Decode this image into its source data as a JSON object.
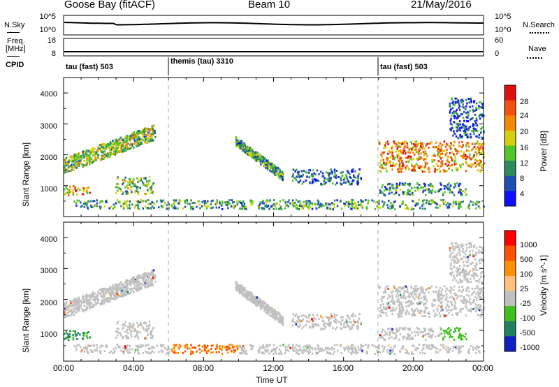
{
  "header": {
    "radar": "Goose Bay (fitACF)",
    "beam": "Beam 10",
    "date": "21/May/2016"
  },
  "summary_labels": {
    "nsky": "N.Sky",
    "nsearch": "N.Search",
    "freq_line1": "Freq.",
    "freq_line2": "[MHz]",
    "nave": "Nave",
    "cpid": "CPID"
  },
  "summary_ticks": {
    "noise_top": "10^5",
    "noise_bottom": "10^0",
    "freq_top": "18",
    "freq_bottom": "8",
    "nave_top": "60",
    "nave_bottom": "0"
  },
  "cpid_segments": [
    {
      "label": "tau (fast) 503",
      "start_hour": 0
    },
    {
      "label": "themis (tau) 3310",
      "start_hour": 6
    },
    {
      "label": "tau (fast) 503",
      "start_hour": 18
    }
  ],
  "colors": {
    "power_scale": [
      "#1010ff",
      "#1f4fb0",
      "#2e8a5a",
      "#53c42c",
      "#d6d00a",
      "#f08a00",
      "#f05010",
      "#e01010"
    ],
    "velocity_scale": [
      "#ff0000",
      "#ff5000",
      "#ff9000",
      "#ffc080",
      "#c0c0c0",
      "#40c020",
      "#208060",
      "#1020c0"
    ],
    "ground_scatter": "#c0c0c0"
  },
  "chart_data": [
    {
      "type": "heatmap",
      "title": "Power",
      "xlabel": "",
      "ylabel": "Slant Range [km]",
      "xlim": [
        "00:00",
        "00:00"
      ],
      "ylim": [
        0,
        4500
      ],
      "yticks": [
        "1000",
        "2000",
        "3000",
        "4000"
      ],
      "colorbar": {
        "label": "Power [dB]",
        "ticks": [
          "4",
          "8",
          "12",
          "16",
          "20",
          "24",
          "28"
        ],
        "range": [
          0,
          30
        ]
      },
      "regions": [
        {
          "t": [
            0.0,
            5.2
          ],
          "r": [
            1500,
            2900
          ],
          "level": 0.45,
          "desc": "rising band"
        },
        {
          "t": [
            0.0,
            1.5
          ],
          "r": [
            650,
            950
          ],
          "level": 0.7
        },
        {
          "t": [
            2.9,
            5.1
          ],
          "r": [
            700,
            1250
          ],
          "level": 0.4
        },
        {
          "t": [
            0.5,
            24.0
          ],
          "r": [
            200,
            500
          ],
          "level": 0.35
        },
        {
          "t": [
            9.8,
            12.5
          ],
          "r": [
            1000,
            2700
          ],
          "level": 0.35
        },
        {
          "t": [
            13.0,
            17.0
          ],
          "r": [
            1000,
            1500
          ],
          "level": 0.25
        },
        {
          "t": [
            18.0,
            24.0
          ],
          "r": [
            1400,
            2400
          ],
          "level": 0.7
        },
        {
          "t": [
            18.0,
            23.0
          ],
          "r": [
            650,
            1050
          ],
          "level": 0.3
        },
        {
          "t": [
            22.0,
            24.0
          ],
          "r": [
            2500,
            3800
          ],
          "level": 0.2
        }
      ]
    },
    {
      "type": "heatmap",
      "title": "Velocity",
      "xlabel": "Time UT",
      "ylabel": "Slant Range [km]",
      "xlim": [
        "00:00",
        "00:00"
      ],
      "ylim": [
        0,
        4500
      ],
      "xticks": [
        "00:00",
        "04:00",
        "08:00",
        "12:00",
        "16:00",
        "20:00",
        "00:00"
      ],
      "yticks": [
        "1000",
        "2000",
        "3000",
        "4000"
      ],
      "colorbar": {
        "label": "Velocity [m s^-1]",
        "ticks": [
          "1000",
          "500",
          "100",
          "25",
          "-25",
          "-100",
          "-500",
          "-1000"
        ],
        "range": [
          -1000,
          1000
        ]
      }
    }
  ]
}
